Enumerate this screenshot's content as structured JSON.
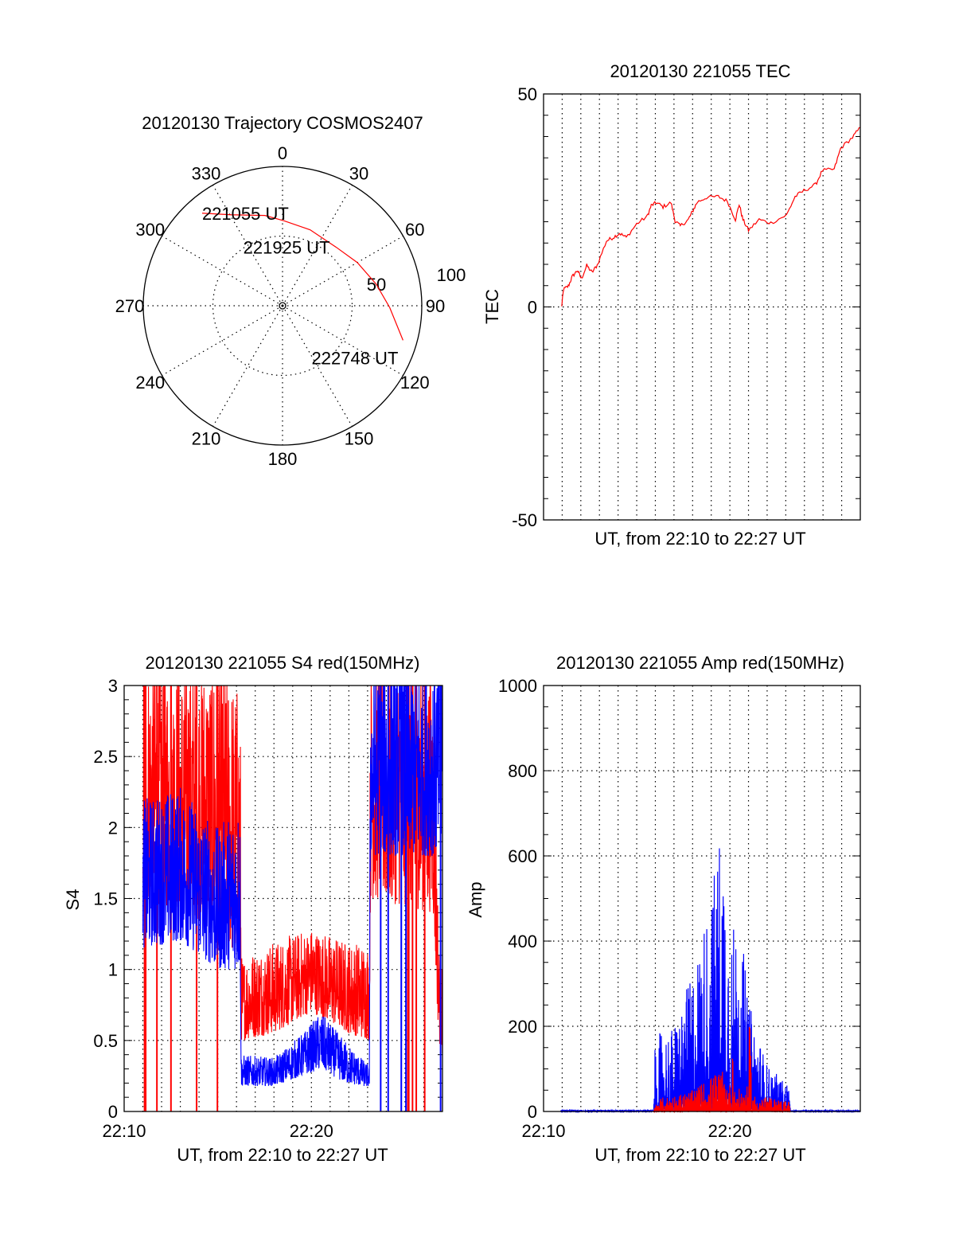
{
  "colors": {
    "red": "#ff0000",
    "blue": "#0000ff",
    "axis": "#000000"
  },
  "chart_data": [
    {
      "type": "polar",
      "title": "20120130 Trajectory COSMOS2407",
      "angle_labels": [
        "0",
        "30",
        "60",
        "90",
        "120",
        "150",
        "180",
        "210",
        "240",
        "270",
        "300",
        "330"
      ],
      "radial_labels": [
        "50",
        "100"
      ],
      "rmax": 100,
      "trajectory": [
        [
          319,
          88
        ],
        [
          330.5,
          75
        ],
        [
          349,
          66
        ],
        [
          1,
          61
        ],
        [
          20,
          58
        ],
        [
          42.6,
          57
        ],
        [
          60,
          62
        ],
        [
          77,
          69
        ],
        [
          91,
          77
        ],
        [
          106,
          90
        ]
      ],
      "annotations": [
        {
          "text": "221055 UT",
          "point": 0
        },
        {
          "text": "221925 UT",
          "point": 5
        },
        {
          "text": "222748 UT",
          "point": 9
        }
      ]
    },
    {
      "type": "line",
      "title": "20120130 221055 TEC",
      "xlabel": "UT, from 22:10 to 22:27 UT",
      "ylabel": "TEC",
      "xlim": [
        0,
        17
      ],
      "ylim": [
        -50,
        50
      ],
      "yticks": [
        "-50",
        "0",
        "50"
      ],
      "series": [
        {
          "name": "TEC",
          "color": "red",
          "points": [
            [
              0.97,
              0
            ],
            [
              1.07,
              4.1
            ],
            [
              1.33,
              4.9
            ],
            [
              1.54,
              7.1
            ],
            [
              1.82,
              8.6
            ],
            [
              2.03,
              6.6
            ],
            [
              2.32,
              9.7
            ],
            [
              2.6,
              8.1
            ],
            [
              2.88,
              9.8
            ],
            [
              3.38,
              15.5
            ],
            [
              3.73,
              16.3
            ],
            [
              4.08,
              17.3
            ],
            [
              4.44,
              16.3
            ],
            [
              5.0,
              19.5
            ],
            [
              5.57,
              21.3
            ],
            [
              5.78,
              23.8
            ],
            [
              6.06,
              24.5
            ],
            [
              6.41,
              23.5
            ],
            [
              6.84,
              24.5
            ],
            [
              7.06,
              20.2
            ],
            [
              7.34,
              19.0
            ],
            [
              7.77,
              20.5
            ],
            [
              7.98,
              22.3
            ],
            [
              8.25,
              24.6
            ],
            [
              8.74,
              25.7
            ],
            [
              9.38,
              25.9
            ],
            [
              9.87,
              24.8
            ],
            [
              10.3,
              20.5
            ],
            [
              10.5,
              24.1
            ],
            [
              10.7,
              20.5
            ],
            [
              11.0,
              18.0
            ],
            [
              11.57,
              20.5
            ],
            [
              12.2,
              19.7
            ],
            [
              13.05,
              21.6
            ],
            [
              13.5,
              25.9
            ],
            [
              13.97,
              27.3
            ],
            [
              14.6,
              28.7
            ],
            [
              14.96,
              32.0
            ],
            [
              15.6,
              32.3
            ],
            [
              15.95,
              37.3
            ],
            [
              16.58,
              39.8
            ],
            [
              17.0,
              42.1
            ]
          ]
        }
      ]
    },
    {
      "type": "line",
      "title": "20120130 221055 S4 red(150MHz)",
      "xlabel": "UT, from 22:10 to 22:27 UT",
      "ylabel": "S4",
      "xlim": [
        0,
        17
      ],
      "ylim": [
        0,
        3
      ],
      "yticks": [
        "0",
        "0.5",
        "1",
        "1.5",
        "2",
        "2.5",
        "3"
      ],
      "xticks": [
        {
          "t": 0,
          "label": "22:10"
        },
        {
          "t": 10,
          "label": "22:20"
        }
      ],
      "series": [
        {
          "name": "red",
          "color": "red",
          "envelope": [
            [
              1.0,
              1.5,
              3.2
            ],
            [
              3.0,
              1.4,
              3.2
            ],
            [
              5.0,
              1.3,
              3.2
            ],
            [
              6.2,
              1.0,
              3.0
            ],
            [
              6.25,
              0.5,
              1.1
            ],
            [
              8.0,
              0.55,
              1.2
            ],
            [
              10.0,
              0.7,
              1.3
            ],
            [
              12.0,
              0.55,
              1.2
            ],
            [
              13.1,
              0.5,
              1.2
            ],
            [
              13.15,
              1.5,
              3.2
            ],
            [
              16.5,
              1.4,
              3.2
            ],
            [
              16.8,
              0.5,
              1.2
            ],
            [
              17.0,
              0.4,
              1.0
            ]
          ],
          "dropouts": [
            1.09,
            1.15,
            1.75,
            2.5,
            3.87,
            4.98,
            15.15,
            15.2,
            15.4,
            15.6,
            16.05
          ]
        },
        {
          "name": "blue",
          "color": "blue",
          "envelope": [
            [
              1.0,
              1.15,
              2.2
            ],
            [
              3.0,
              1.2,
              2.3
            ],
            [
              5.0,
              1.0,
              2.0
            ],
            [
              6.2,
              1.0,
              2.2
            ],
            [
              6.25,
              0.18,
              0.4
            ],
            [
              8.0,
              0.18,
              0.38
            ],
            [
              9.5,
              0.25,
              0.55
            ],
            [
              10.5,
              0.3,
              0.7
            ],
            [
              11.8,
              0.2,
              0.5
            ],
            [
              13.1,
              0.17,
              0.32
            ],
            [
              13.15,
              1.8,
              3.2
            ],
            [
              17.0,
              1.8,
              3.2
            ]
          ],
          "dropouts": [
            13.7,
            14.1,
            14.8,
            15.05,
            16.9
          ]
        }
      ]
    },
    {
      "type": "area",
      "title": "20120130 221055 Amp red(150MHz)",
      "xlabel": "UT, from 22:10 to 22:27 UT",
      "ylabel": "Amp",
      "xlim": [
        0,
        17
      ],
      "ylim": [
        0,
        1000
      ],
      "yticks": [
        "0",
        "200",
        "400",
        "600",
        "800",
        "1000"
      ],
      "xticks": [
        {
          "t": 0,
          "label": "22:10"
        },
        {
          "t": 10,
          "label": "22:20"
        }
      ],
      "series": [
        {
          "name": "blue",
          "color": "blue",
          "envelope": [
            [
              0.9,
              1,
              4
            ],
            [
              5.9,
              1,
              4
            ],
            [
              6.0,
              5,
              180
            ],
            [
              7.0,
              20,
              200
            ],
            [
              8.0,
              30,
              330
            ],
            [
              9.0,
              40,
              520
            ],
            [
              9.6,
              50,
              720
            ],
            [
              10.0,
              40,
              420
            ],
            [
              10.5,
              30,
              480
            ],
            [
              11.0,
              20,
              260
            ],
            [
              12.0,
              10,
              110
            ],
            [
              13.2,
              5,
              60
            ],
            [
              13.25,
              1,
              3
            ],
            [
              17.0,
              1,
              3
            ]
          ]
        },
        {
          "name": "red",
          "color": "red",
          "envelope": [
            [
              5.9,
              0,
              0
            ],
            [
              6.1,
              0,
              30
            ],
            [
              8.0,
              0,
              50
            ],
            [
              9.5,
              0,
              100
            ],
            [
              10.1,
              0,
              60
            ],
            [
              10.15,
              0,
              250
            ],
            [
              10.25,
              0,
              50
            ],
            [
              11.0,
              0,
              60
            ],
            [
              11.05,
              0,
              240
            ],
            [
              11.2,
              0,
              40
            ],
            [
              13.2,
              0,
              25
            ],
            [
              13.25,
              0,
              0
            ]
          ]
        }
      ]
    }
  ]
}
